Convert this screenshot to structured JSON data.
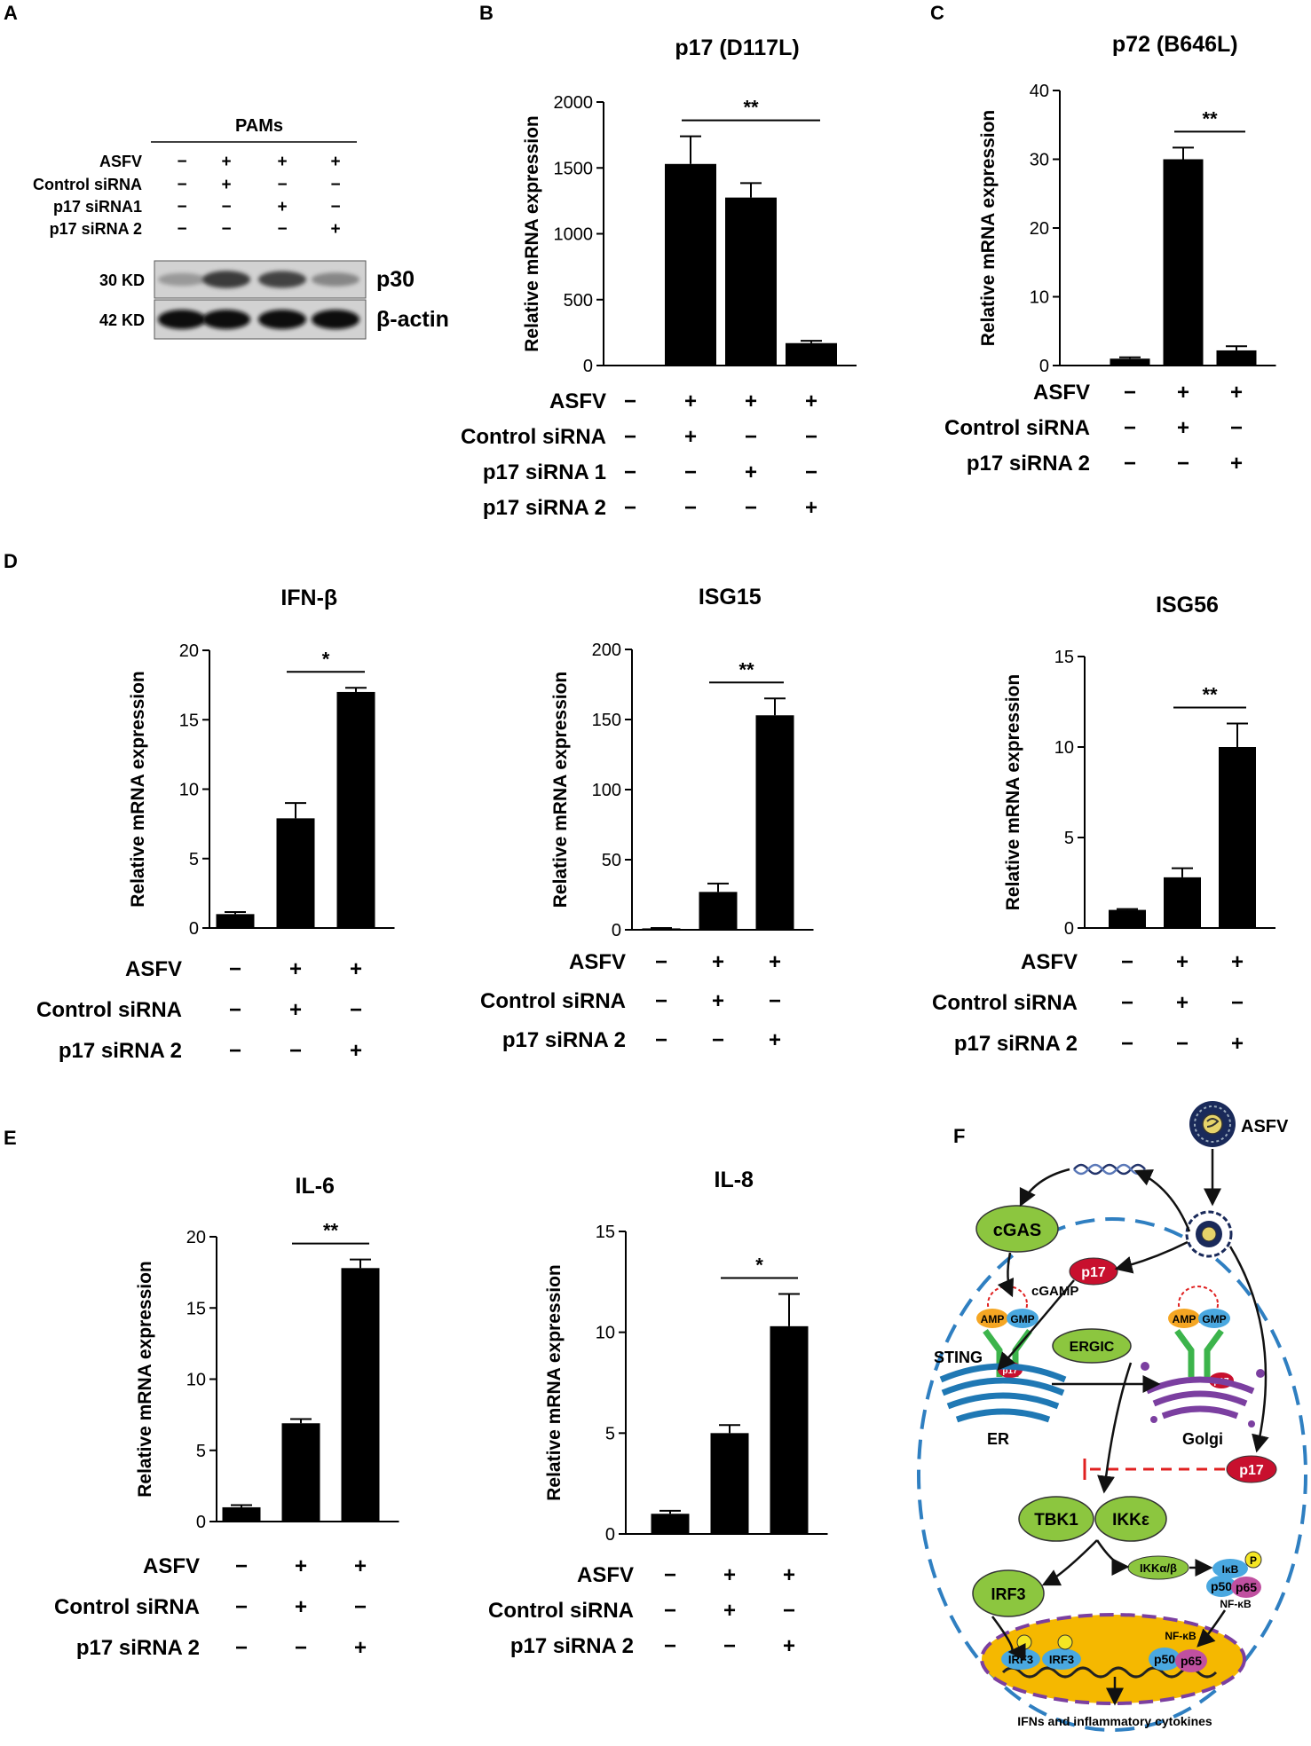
{
  "panels": {
    "A": {
      "letter": "A",
      "header": "PAMs",
      "row_labels": [
        "ASFV",
        "Control siRNA",
        "p17 siRNA1",
        "p17 siRNA 2"
      ],
      "signs": [
        [
          "−",
          "+",
          "+",
          "+"
        ],
        [
          "−",
          "+",
          "−",
          "−"
        ],
        [
          "−",
          "−",
          "+",
          "−"
        ],
        [
          "−",
          "−",
          "−",
          "+"
        ]
      ],
      "bands": [
        {
          "kd": "30 KD",
          "protein": "p30",
          "intensity": [
            0.25,
            0.75,
            0.7,
            0.35
          ]
        },
        {
          "kd": "42 KD",
          "protein": "β-actin",
          "intensity": [
            1,
            1,
            1,
            1
          ]
        }
      ]
    },
    "F": {
      "letter": "F",
      "labels": {
        "asfv": "ASFV",
        "cgas": "cGAS",
        "cgamp": "cGAMP",
        "p17": "p17",
        "amp": "AMP",
        "gmp": "GMP",
        "sting": "STING",
        "er": "ER",
        "ergic": "ERGIC",
        "golgi": "Golgi",
        "tbk1": "TBK1",
        "ikke": "IKKε",
        "ikkab": "IKKα/β",
        "ikb": "IκB",
        "p": "P",
        "p50": "p50",
        "p65": "p65",
        "nfkb": "NF-κB",
        "irf3": "IRF3",
        "output": "IFNs and inflammatory cytokines"
      }
    }
  },
  "chart_data": [
    {
      "panel": "B",
      "type": "bar",
      "title": "p17 (D117L)",
      "ylabel": "Relative mRNA expression",
      "ylim": [
        0,
        2000
      ],
      "yticks": [
        0,
        500,
        1000,
        1500,
        2000
      ],
      "values": [
        1,
        1530,
        1275,
        170
      ],
      "errors": [
        0,
        210,
        110,
        18
      ],
      "sig": {
        "from": 1,
        "to": 3,
        "label": "**"
      },
      "rows": [
        {
          "label": "ASFV",
          "signs": [
            "−",
            "+",
            "+",
            "+"
          ]
        },
        {
          "label": "Control siRNA",
          "signs": [
            "−",
            "+",
            "−",
            "−"
          ]
        },
        {
          "label": "p17 siRNA 1",
          "signs": [
            "−",
            "−",
            "+",
            "−"
          ]
        },
        {
          "label": "p17 siRNA 2",
          "signs": [
            "−",
            "−",
            "−",
            "+"
          ]
        }
      ]
    },
    {
      "panel": "C",
      "type": "bar",
      "title": "p72 (B646L)",
      "ylabel": "Relative mRNA expression",
      "ylim": [
        0,
        40
      ],
      "yticks": [
        0,
        10,
        20,
        30,
        40
      ],
      "values": [
        1,
        30,
        2.2
      ],
      "errors": [
        0.2,
        1.7,
        0.6
      ],
      "sig": {
        "from": 1,
        "to": 2,
        "label": "**"
      },
      "rows": [
        {
          "label": "ASFV",
          "signs": [
            "−",
            "+",
            "+"
          ]
        },
        {
          "label": "Control siRNA",
          "signs": [
            "−",
            "+",
            "−"
          ]
        },
        {
          "label": "p17 siRNA 2",
          "signs": [
            "−",
            "−",
            "+"
          ]
        }
      ]
    },
    {
      "panel": "D",
      "type": "bar",
      "title": "IFN-β",
      "ylabel": "Relative mRNA expression",
      "ylim": [
        0,
        20
      ],
      "yticks": [
        0,
        5,
        10,
        15,
        20
      ],
      "values": [
        1,
        7.9,
        17
      ],
      "errors": [
        0.15,
        1.1,
        0.3
      ],
      "sig": {
        "from": 1,
        "to": 2,
        "label": "*"
      },
      "rows": [
        {
          "label": "ASFV",
          "signs": [
            "−",
            "+",
            "+"
          ]
        },
        {
          "label": "Control siRNA",
          "signs": [
            "−",
            "+",
            "−"
          ]
        },
        {
          "label": "p17 siRNA 2",
          "signs": [
            "−",
            "−",
            "+"
          ]
        }
      ]
    },
    {
      "panel": "",
      "type": "bar",
      "title": "ISG15",
      "ylabel": "Relative mRNA expression",
      "ylim": [
        0,
        200
      ],
      "yticks": [
        0,
        50,
        100,
        150,
        200
      ],
      "values": [
        1,
        27,
        153
      ],
      "errors": [
        0.3,
        6,
        12
      ],
      "sig": {
        "from": 1,
        "to": 2,
        "label": "**"
      },
      "rows": [
        {
          "label": "ASFV",
          "signs": [
            "−",
            "+",
            "+"
          ]
        },
        {
          "label": "Control siRNA",
          "signs": [
            "−",
            "+",
            "−"
          ]
        },
        {
          "label": "p17 siRNA 2",
          "signs": [
            "−",
            "−",
            "+"
          ]
        }
      ]
    },
    {
      "panel": "",
      "type": "bar",
      "title": "ISG56",
      "ylabel": "Relative mRNA expression",
      "ylim": [
        0,
        15
      ],
      "yticks": [
        0,
        5,
        10,
        15
      ],
      "values": [
        1,
        2.8,
        10
      ],
      "errors": [
        0.05,
        0.5,
        1.3
      ],
      "sig": {
        "from": 1,
        "to": 2,
        "label": "**"
      },
      "rows": [
        {
          "label": "ASFV",
          "signs": [
            "−",
            "+",
            "+"
          ]
        },
        {
          "label": "Control siRNA",
          "signs": [
            "−",
            "+",
            "−"
          ]
        },
        {
          "label": "p17 siRNA 2",
          "signs": [
            "−",
            "−",
            "+"
          ]
        }
      ]
    },
    {
      "panel": "E",
      "type": "bar",
      "title": "IL-6",
      "ylabel": "Relative mRNA expression",
      "ylim": [
        0,
        20
      ],
      "yticks": [
        0,
        5,
        10,
        15,
        20
      ],
      "values": [
        1,
        6.9,
        17.8
      ],
      "errors": [
        0.15,
        0.3,
        0.6
      ],
      "sig": {
        "from": 1,
        "to": 2,
        "label": "**"
      },
      "rows": [
        {
          "label": "ASFV",
          "signs": [
            "−",
            "+",
            "+"
          ]
        },
        {
          "label": "Control siRNA",
          "signs": [
            "−",
            "+",
            "−"
          ]
        },
        {
          "label": "p17 siRNA 2",
          "signs": [
            "−",
            "−",
            "+"
          ]
        }
      ]
    },
    {
      "panel": "",
      "type": "bar",
      "title": "IL-8",
      "ylabel": "Relative mRNA expression",
      "ylim": [
        0,
        15
      ],
      "yticks": [
        0,
        5,
        10,
        15
      ],
      "values": [
        1,
        5,
        10.3
      ],
      "errors": [
        0.15,
        0.4,
        1.6
      ],
      "sig": {
        "from": 1,
        "to": 2,
        "label": "*"
      },
      "rows": [
        {
          "label": "ASFV",
          "signs": [
            "−",
            "+",
            "+"
          ]
        },
        {
          "label": "Control siRNA",
          "signs": [
            "−",
            "+",
            "−"
          ]
        },
        {
          "label": "p17 siRNA 2",
          "signs": [
            "−",
            "−",
            "+"
          ]
        }
      ]
    }
  ]
}
